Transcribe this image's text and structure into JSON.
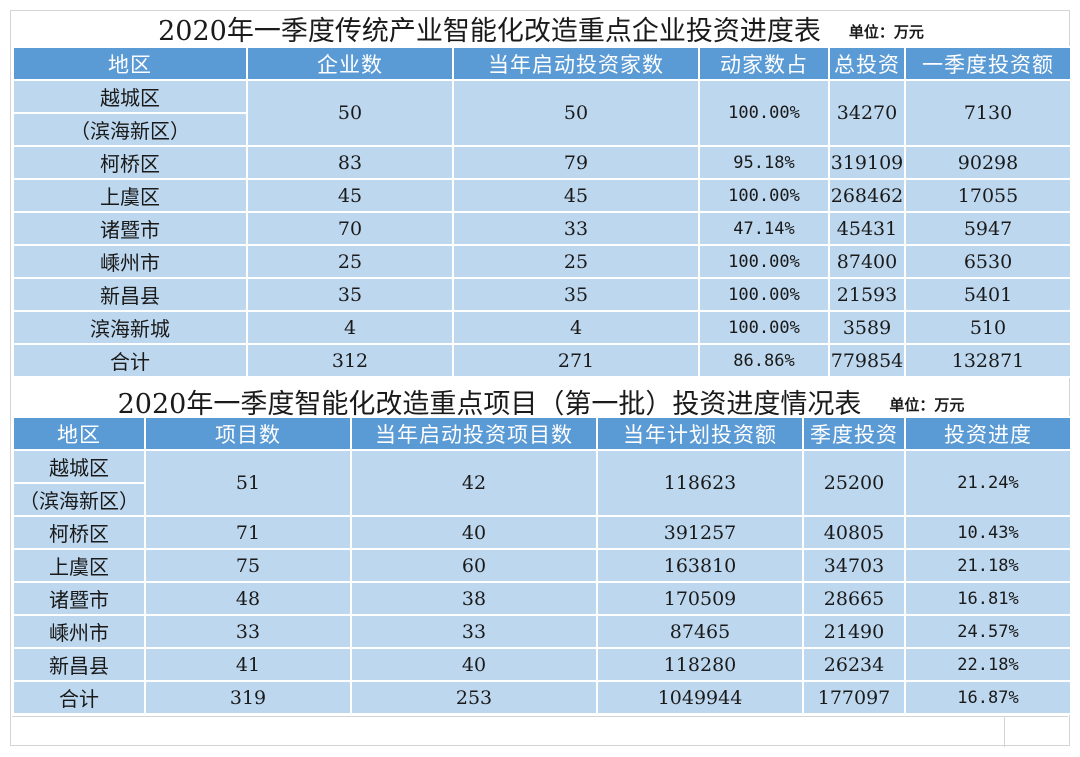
{
  "table1": {
    "title": "2020年一季度传统产业智能化改造重点企业投资进度表",
    "unit": "单位：万元",
    "headers": [
      "地区",
      "企业数",
      "当年启动投资家数",
      "动家数占",
      "总投资",
      "一季度投资额"
    ],
    "rows": [
      {
        "region_line1": "越城区",
        "region_line2": "（滨海新区）",
        "cells": [
          "50",
          "50",
          "100.00%",
          "34270",
          "7130"
        ]
      },
      {
        "region_line1": "柯桥区",
        "cells": [
          "83",
          "79",
          "95.18%",
          "319109",
          "90298"
        ]
      },
      {
        "region_line1": "上虞区",
        "cells": [
          "45",
          "45",
          "100.00%",
          "268462",
          "17055"
        ]
      },
      {
        "region_line1": "诸暨市",
        "cells": [
          "70",
          "33",
          "47.14%",
          "45431",
          "5947"
        ]
      },
      {
        "region_line1": "嵊州市",
        "cells": [
          "25",
          "25",
          "100.00%",
          "87400",
          "6530"
        ]
      },
      {
        "region_line1": "新昌县",
        "cells": [
          "35",
          "35",
          "100.00%",
          "21593",
          "5401"
        ]
      },
      {
        "region_line1": "滨海新城",
        "cells": [
          "4",
          "4",
          "100.00%",
          "3589",
          "510"
        ]
      },
      {
        "region_line1": "合计",
        "cells": [
          "312",
          "271",
          "86.86%",
          "779854",
          "132871"
        ]
      }
    ]
  },
  "table2": {
    "title": "2020年一季度智能化改造重点项目（第一批）投资进度情况表",
    "unit": "单位：万元",
    "headers": [
      "地区",
      "项目数",
      "当年启动投资项目数",
      "当年计划投资额",
      "季度投资",
      "投资进度"
    ],
    "rows": [
      {
        "region_line1": "越城区",
        "region_line2": "（滨海新区）",
        "cells": [
          "51",
          "42",
          "118623",
          "25200",
          "21.24%"
        ]
      },
      {
        "region_line1": "柯桥区",
        "cells": [
          "71",
          "40",
          "391257",
          "40805",
          "10.43%"
        ]
      },
      {
        "region_line1": "上虞区",
        "cells": [
          "75",
          "60",
          "163810",
          "34703",
          "21.18%"
        ]
      },
      {
        "region_line1": "诸暨市",
        "cells": [
          "48",
          "38",
          "170509",
          "28665",
          "16.81%"
        ]
      },
      {
        "region_line1": "嵊州市",
        "cells": [
          "33",
          "33",
          "87465",
          "21490",
          "24.57%"
        ]
      },
      {
        "region_line1": "新昌县",
        "cells": [
          "41",
          "40",
          "118280",
          "26234",
          "22.18%"
        ]
      },
      {
        "region_line1": "合计",
        "cells": [
          "319",
          "253",
          "1049944",
          "177097",
          "16.87%"
        ]
      }
    ]
  }
}
